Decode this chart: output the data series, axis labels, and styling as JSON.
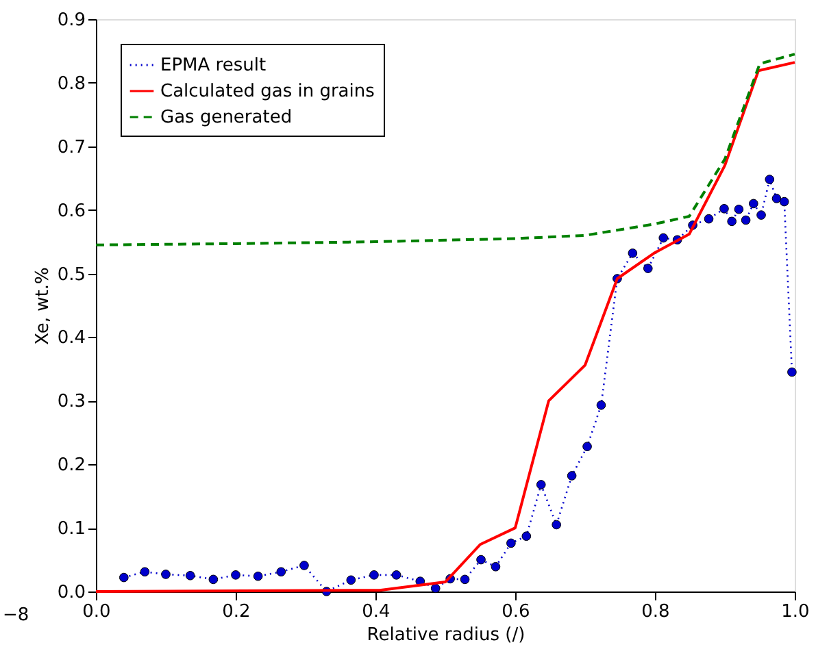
{
  "chart_data": {
    "type": "line",
    "xlabel": "Relative radius (/)",
    "ylabel": "Xe, wt.%",
    "xlim": [
      0,
      1
    ],
    "ylim": [
      0,
      0.9
    ],
    "xticks": [
      {
        "value": 0,
        "label": "0.0"
      },
      0.2,
      0.4,
      0.6,
      0.8,
      {
        "value": 1,
        "label": "1.0"
      }
    ],
    "yticks": [
      {
        "value": 0,
        "label": "0.0"
      },
      0.1,
      0.2,
      0.3,
      0.4,
      0.5,
      0.6,
      0.7,
      0.8,
      0.9
    ],
    "grid": false,
    "legend": "top left",
    "annotations": [
      "−8"
    ],
    "series": [
      {
        "name": "EPMA result",
        "color": "#0000cc",
        "marker": "circle",
        "line_style": "dotted",
        "x": [
          0.04,
          0.07,
          0.1,
          0.135,
          0.168,
          0.2,
          0.232,
          0.265,
          0.298,
          0.33,
          0.365,
          0.398,
          0.43,
          0.464,
          0.486,
          0.507,
          0.528,
          0.551,
          0.572,
          0.594,
          0.616,
          0.637,
          0.659,
          0.681,
          0.703,
          0.723,
          0.746,
          0.768,
          0.79,
          0.812,
          0.832,
          0.854,
          0.877,
          0.899,
          0.91,
          0.92,
          0.93,
          0.941,
          0.952,
          0.964,
          0.974,
          0.985,
          0.996
        ],
        "values": [
          0.022,
          0.031,
          0.027,
          0.025,
          0.019,
          0.026,
          0.024,
          0.031,
          0.041,
          0.0,
          0.018,
          0.026,
          0.026,
          0.016,
          0.005,
          0.02,
          0.019,
          0.05,
          0.039,
          0.076,
          0.087,
          0.168,
          0.105,
          0.182,
          0.228,
          0.293,
          0.492,
          0.532,
          0.508,
          0.556,
          0.553,
          0.576,
          0.586,
          0.602,
          0.582,
          0.601,
          0.584,
          0.61,
          0.592,
          0.648,
          0.618,
          0.613,
          0.345
        ]
      },
      {
        "name": "Calculated gas in grains",
        "color": "#ff0000",
        "marker": "none",
        "line_style": "solid",
        "x": [
          0,
          0.406,
          0.5,
          0.55,
          0.6,
          0.648,
          0.7,
          0.746,
          0.8,
          0.849,
          0.9,
          0.948,
          1.0
        ],
        "values": [
          0,
          0.002,
          0.015,
          0.074,
          0.1,
          0.3,
          0.356,
          0.492,
          0.533,
          0.562,
          0.67,
          0.819,
          0.832
        ]
      },
      {
        "name": "Gas generated",
        "color": "#008000",
        "marker": "none",
        "line_style": "dashed",
        "x": [
          0,
          0.2,
          0.4,
          0.6,
          0.7,
          0.8,
          0.849,
          0.9,
          0.95,
          1.0
        ],
        "values": [
          0.545,
          0.547,
          0.55,
          0.555,
          0.56,
          0.578,
          0.59,
          0.68,
          0.83,
          0.845
        ]
      }
    ]
  }
}
